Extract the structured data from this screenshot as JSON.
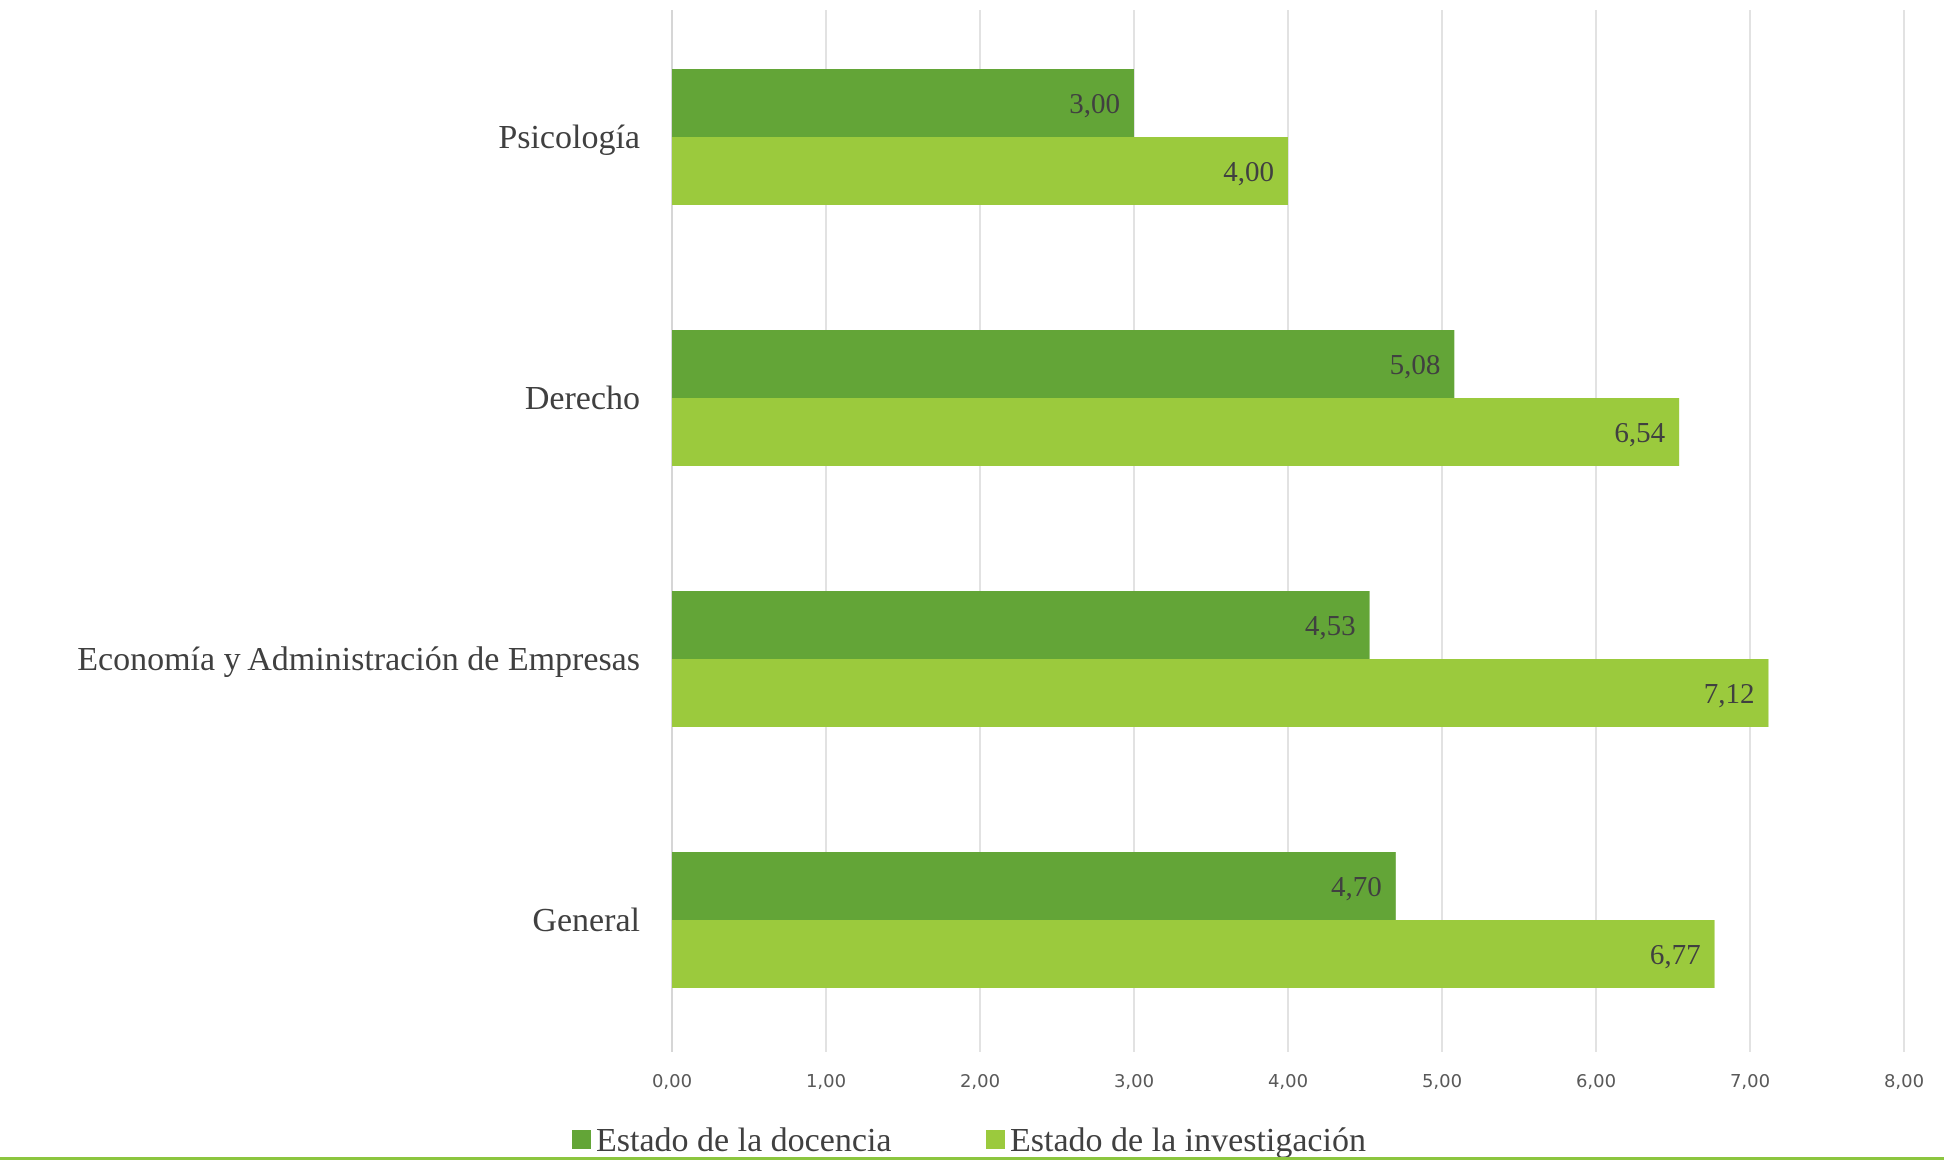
{
  "chart_data": {
    "type": "bar",
    "orientation": "horizontal",
    "categories": [
      "Psicología",
      "Derecho",
      "Economía y Administración de Empresas",
      "General"
    ],
    "series": [
      {
        "name": "Estado de la docencia",
        "color": "#63a537",
        "values": [
          3.0,
          5.08,
          4.53,
          4.7
        ],
        "labels": [
          "3,00",
          "5,08",
          "4,53",
          "4,70"
        ]
      },
      {
        "name": "Estado de la investigación",
        "color": "#9bca3d",
        "values": [
          4.0,
          6.54,
          7.12,
          6.77
        ],
        "labels": [
          "4,00",
          "6,54",
          "7,12",
          "6,77"
        ]
      }
    ],
    "xlim": [
      0,
      8
    ],
    "x_ticks": [
      "0,00",
      "1,00",
      "2,00",
      "3,00",
      "4,00",
      "5,00",
      "6,00",
      "7,00",
      "8,00"
    ],
    "grid": true,
    "legend_position": "bottom"
  }
}
